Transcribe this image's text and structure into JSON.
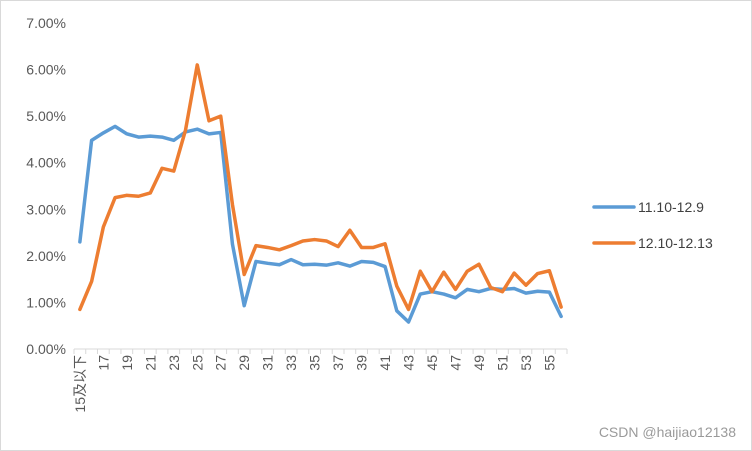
{
  "watermark": "CSDN @haijiao12138",
  "chart_data": {
    "type": "line",
    "legend_position": "right",
    "grid": false,
    "ylim": [
      0,
      0.07
    ],
    "y_ticks": [
      "0.00%",
      "1.00%",
      "2.00%",
      "3.00%",
      "4.00%",
      "5.00%",
      "6.00%",
      "7.00%"
    ],
    "x": [
      "15及以下",
      "16",
      "17",
      "18",
      "19",
      "20",
      "21",
      "22",
      "23",
      "24",
      "25",
      "26",
      "27",
      "28",
      "29",
      "30",
      "31",
      "32",
      "33",
      "34",
      "35",
      "36",
      "37",
      "38",
      "39",
      "40",
      "41",
      "42",
      "43",
      "44",
      "45",
      "46",
      "47",
      "48",
      "49",
      "50",
      "51",
      "52",
      "53",
      "54",
      "55",
      "56"
    ],
    "x_tick_labels": [
      "15及以下",
      "17",
      "19",
      "21",
      "23",
      "25",
      "27",
      "29",
      "31",
      "33",
      "35",
      "37",
      "39",
      "41",
      "43",
      "45",
      "47",
      "49",
      "51",
      "53",
      "55"
    ],
    "series": [
      {
        "name": "11.10-12.9",
        "color": "#5B9BD5",
        "values": [
          0.023,
          0.0448,
          0.0464,
          0.0478,
          0.0462,
          0.0455,
          0.0457,
          0.0455,
          0.0448,
          0.0466,
          0.0472,
          0.0462,
          0.0465,
          0.0225,
          0.0093,
          0.0188,
          0.0184,
          0.0181,
          0.0192,
          0.0181,
          0.0182,
          0.018,
          0.0185,
          0.0178,
          0.0188,
          0.0186,
          0.0177,
          0.0082,
          0.0058,
          0.0118,
          0.0123,
          0.0118,
          0.011,
          0.0128,
          0.0123,
          0.013,
          0.0128,
          0.013,
          0.012,
          0.0124,
          0.0122,
          0.007
        ]
      },
      {
        "name": "12.10-12.13",
        "color": "#ED7D31",
        "values": [
          0.0085,
          0.0145,
          0.0262,
          0.0325,
          0.033,
          0.0328,
          0.0335,
          0.0388,
          0.0382,
          0.047,
          0.061,
          0.049,
          0.05,
          0.031,
          0.016,
          0.0222,
          0.0218,
          0.0213,
          0.0222,
          0.0232,
          0.0235,
          0.0232,
          0.022,
          0.0255,
          0.0218,
          0.0218,
          0.0226,
          0.0135,
          0.0085,
          0.0167,
          0.0123,
          0.0165,
          0.0128,
          0.0167,
          0.0182,
          0.0132,
          0.0123,
          0.0163,
          0.0137,
          0.0162,
          0.0168,
          0.009
        ]
      }
    ]
  }
}
